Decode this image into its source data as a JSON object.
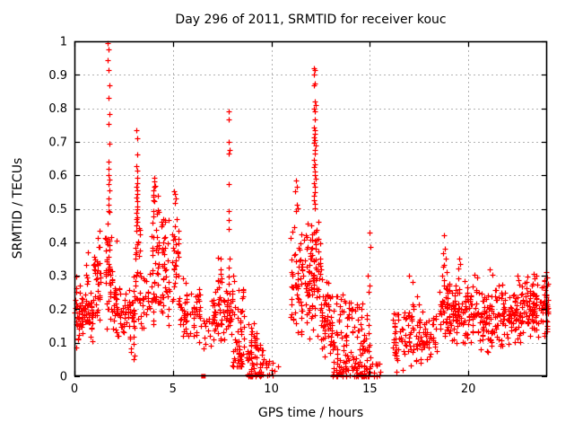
{
  "page": {
    "background": "#ffffff"
  },
  "chart_data": {
    "type": "scatter",
    "title": "Day 296 of 2011, SRMTID for receiver kouc",
    "xlabel": "GPS time / hours",
    "ylabel": "SRMTID / TECUs",
    "xlim": [
      0,
      24
    ],
    "ylim": [
      0,
      1
    ],
    "xticks": [
      0,
      5,
      10,
      15,
      20
    ],
    "yticks": [
      0,
      0.1,
      0.2,
      0.3,
      0.4,
      0.5,
      0.6,
      0.7,
      0.8,
      0.9,
      1
    ],
    "grid": true,
    "legend": "none",
    "marker": {
      "glyph": "plus",
      "color": "#ff0000",
      "size": 7
    },
    "grid_color": "#b3b3b3",
    "axis_color": "#000000",
    "seed": 20111296,
    "notable_points": [
      [
        1.68,
        0.995
      ],
      [
        1.73,
        0.975
      ],
      [
        1.7,
        0.945
      ],
      [
        1.75,
        0.915
      ],
      [
        1.78,
        0.868
      ],
      [
        1.72,
        0.832
      ],
      [
        1.76,
        0.782
      ],
      [
        1.73,
        0.754
      ],
      [
        1.77,
        0.695
      ],
      [
        1.71,
        0.64
      ],
      [
        1.74,
        0.618
      ],
      [
        1.72,
        0.6
      ],
      [
        1.76,
        0.588
      ],
      [
        1.74,
        0.574
      ],
      [
        1.78,
        0.556
      ],
      [
        1.71,
        0.532
      ],
      [
        1.75,
        0.512
      ],
      [
        1.73,
        0.492
      ],
      [
        2.15,
        0.405
      ],
      [
        3.15,
        0.735
      ],
      [
        3.18,
        0.71
      ],
      [
        3.21,
        0.662
      ],
      [
        3.16,
        0.628
      ],
      [
        3.19,
        0.614
      ],
      [
        3.17,
        0.592
      ],
      [
        3.2,
        0.576
      ],
      [
        3.15,
        0.566
      ],
      [
        3.18,
        0.556
      ],
      [
        3.21,
        0.544
      ],
      [
        3.16,
        0.534
      ],
      [
        3.19,
        0.522
      ],
      [
        3.17,
        0.508
      ],
      [
        3.2,
        0.498
      ],
      [
        3.15,
        0.488
      ],
      [
        3.18,
        0.474
      ],
      [
        3.21,
        0.462
      ],
      [
        5.05,
        0.552
      ],
      [
        5.1,
        0.545
      ],
      [
        5.15,
        0.53
      ],
      [
        5.08,
        0.518
      ],
      [
        5.2,
        0.47
      ],
      [
        7.82,
        0.79
      ],
      [
        7.85,
        0.766
      ],
      [
        7.83,
        0.7
      ],
      [
        7.86,
        0.676
      ],
      [
        7.84,
        0.664
      ],
      [
        7.83,
        0.574
      ],
      [
        7.85,
        0.492
      ],
      [
        7.82,
        0.466
      ],
      [
        7.84,
        0.44
      ],
      [
        7.86,
        0.35
      ],
      [
        7.83,
        0.324
      ],
      [
        7.85,
        0.298
      ],
      [
        8.08,
        0.3
      ],
      [
        8.12,
        0.285
      ],
      [
        11.25,
        0.585
      ],
      [
        11.3,
        0.565
      ],
      [
        11.22,
        0.552
      ],
      [
        11.28,
        0.512
      ],
      [
        11.33,
        0.502
      ],
      [
        11.26,
        0.494
      ],
      [
        12.15,
        0.92
      ],
      [
        12.2,
        0.913
      ],
      [
        12.18,
        0.9
      ],
      [
        12.22,
        0.874
      ],
      [
        12.17,
        0.868
      ],
      [
        12.2,
        0.82
      ],
      [
        12.23,
        0.81
      ],
      [
        12.18,
        0.8
      ],
      [
        12.21,
        0.79
      ],
      [
        12.19,
        0.766
      ],
      [
        12.16,
        0.742
      ],
      [
        12.2,
        0.734
      ],
      [
        12.22,
        0.724
      ],
      [
        12.18,
        0.714
      ],
      [
        12.21,
        0.704
      ],
      [
        12.17,
        0.698
      ],
      [
        12.23,
        0.688
      ],
      [
        12.19,
        0.676
      ],
      [
        12.22,
        0.664
      ],
      [
        12.16,
        0.646
      ],
      [
        12.2,
        0.634
      ],
      [
        12.18,
        0.624
      ],
      [
        12.21,
        0.61
      ],
      [
        12.19,
        0.6
      ],
      [
        12.23,
        0.59
      ],
      [
        12.17,
        0.576
      ],
      [
        12.2,
        0.565
      ],
      [
        12.22,
        0.55
      ],
      [
        12.18,
        0.54
      ],
      [
        12.15,
        0.526
      ],
      [
        12.21,
        0.514
      ],
      [
        12.19,
        0.502
      ],
      [
        15.0,
        0.43
      ],
      [
        15.02,
        0.386
      ],
      [
        14.98,
        0.272
      ],
      [
        14.9,
        0.3
      ],
      [
        14.93,
        0.252
      ],
      [
        16.3,
        0.07
      ],
      [
        17.0,
        0.3
      ],
      [
        17.15,
        0.282
      ],
      [
        18.75,
        0.42
      ],
      [
        18.8,
        0.382
      ],
      [
        18.7,
        0.366
      ],
      [
        18.85,
        0.35
      ],
      [
        18.78,
        0.332
      ],
      [
        18.72,
        0.326
      ],
      [
        18.9,
        0.312
      ],
      [
        19.55,
        0.352
      ],
      [
        19.6,
        0.336
      ],
      [
        19.5,
        0.322
      ],
      [
        20.3,
        0.302
      ],
      [
        20.45,
        0.295
      ],
      [
        21.1,
        0.32
      ],
      [
        21.2,
        0.302
      ],
      [
        22.5,
        0.3
      ],
      [
        22.55,
        0.286
      ],
      [
        23.3,
        0.306
      ],
      [
        23.45,
        0.3
      ],
      [
        23.35,
        0.292
      ],
      [
        23.95,
        0.31
      ],
      [
        24.0,
        0.295
      ],
      [
        24.0,
        0.27
      ],
      [
        23.97,
        0.24
      ],
      [
        24.0,
        0.215
      ],
      [
        23.95,
        0.2
      ]
    ],
    "dense_clusters": [
      {
        "x": [
          0.0,
          0.3
        ],
        "y": [
          0.08,
          0.3
        ],
        "n": 28,
        "cols": 2
      },
      {
        "x": [
          0.3,
          0.95
        ],
        "y": [
          0.1,
          0.26
        ],
        "n": 60,
        "cols": 4,
        "bias": "mid"
      },
      {
        "x": [
          0.55,
          0.72
        ],
        "y": [
          0.27,
          0.37
        ],
        "n": 6,
        "cols": 1
      },
      {
        "x": [
          0.95,
          1.35
        ],
        "y": [
          0.12,
          0.46
        ],
        "n": 42,
        "cols": 3,
        "bias": "mid"
      },
      {
        "x": [
          1.55,
          1.95
        ],
        "y": [
          0.12,
          0.5
        ],
        "n": 48,
        "cols": 3,
        "bias": "mid"
      },
      {
        "x": [
          1.95,
          3.05
        ],
        "y": [
          0.11,
          0.28
        ],
        "n": 75,
        "cols": 6,
        "bias": "mid"
      },
      {
        "x": [
          2.75,
          3.05
        ],
        "y": [
          0.05,
          0.12
        ],
        "n": 8,
        "cols": 2
      },
      {
        "x": [
          3.08,
          3.35
        ],
        "y": [
          0.3,
          0.47
        ],
        "n": 20,
        "cols": 2
      },
      {
        "x": [
          3.0,
          3.6
        ],
        "y": [
          0.14,
          0.3
        ],
        "n": 28,
        "cols": 4
      },
      {
        "x": [
          3.6,
          4.5
        ],
        "y": [
          0.15,
          0.32
        ],
        "n": 32,
        "cols": 5,
        "bias": "mid"
      },
      {
        "x": [
          3.92,
          4.32
        ],
        "y": [
          0.3,
          0.5
        ],
        "n": 26,
        "cols": 3
      },
      {
        "x": [
          3.98,
          4.28
        ],
        "y": [
          0.5,
          0.6
        ],
        "n": 10,
        "cols": 2
      },
      {
        "x": [
          4.4,
          4.82
        ],
        "y": [
          0.28,
          0.48
        ],
        "n": 28,
        "cols": 3
      },
      {
        "x": [
          4.4,
          4.85
        ],
        "y": [
          0.15,
          0.28
        ],
        "n": 14,
        "cols": 3
      },
      {
        "x": [
          4.95,
          5.3
        ],
        "y": [
          0.2,
          0.47
        ],
        "n": 30,
        "cols": 3,
        "bias": "mid"
      },
      {
        "x": [
          5.3,
          5.75
        ],
        "y": [
          0.1,
          0.33
        ],
        "n": 30,
        "cols": 3,
        "bias": "mid"
      },
      {
        "x": [
          5.75,
          6.45
        ],
        "y": [
          0.08,
          0.28
        ],
        "n": 34,
        "cols": 4,
        "bias": "mid"
      },
      {
        "x": [
          6.5,
          6.95
        ],
        "y": [
          0.04,
          0.18
        ],
        "n": 12,
        "cols": 3
      },
      {
        "x": [
          6.95,
          7.65
        ],
        "y": [
          0.08,
          0.3
        ],
        "n": 48,
        "cols": 4,
        "bias": "mid"
      },
      {
        "x": [
          7.2,
          7.55
        ],
        "y": [
          0.28,
          0.36
        ],
        "n": 8,
        "cols": 2
      },
      {
        "x": [
          7.68,
          8.05
        ],
        "y": [
          0.1,
          0.3
        ],
        "n": 30,
        "cols": 3,
        "bias": "mid"
      },
      {
        "x": [
          8.0,
          8.65
        ],
        "y": [
          0.03,
          0.28
        ],
        "n": 58,
        "cols": 5,
        "bias": "low"
      },
      {
        "x": [
          8.75,
          9.65
        ],
        "y": [
          0.0,
          0.17
        ],
        "n": 75,
        "cols": 6,
        "bias": "low"
      },
      {
        "x": [
          9.65,
          10.4
        ],
        "y": [
          0.0,
          0.05
        ],
        "n": 12,
        "cols": 4,
        "bias": "low"
      },
      {
        "x": [
          10.95,
          11.6
        ],
        "y": [
          0.08,
          0.45
        ],
        "n": 55,
        "cols": 4,
        "bias": "mid"
      },
      {
        "x": [
          11.6,
          12.5
        ],
        "y": [
          0.08,
          0.5
        ],
        "n": 95,
        "cols": 6,
        "bias": "mid"
      },
      {
        "x": [
          12.5,
          13.1
        ],
        "y": [
          0.05,
          0.33
        ],
        "n": 60,
        "cols": 4,
        "bias": "mid"
      },
      {
        "x": [
          13.1,
          14.0
        ],
        "y": [
          0.0,
          0.25
        ],
        "n": 85,
        "cols": 6,
        "bias": "low"
      },
      {
        "x": [
          14.0,
          15.05
        ],
        "y": [
          0.0,
          0.22
        ],
        "n": 95,
        "cols": 7,
        "bias": "low"
      },
      {
        "x": [
          15.1,
          15.55
        ],
        "y": [
          0.0,
          0.04
        ],
        "n": 10,
        "cols": 3,
        "bias": "low"
      },
      {
        "x": [
          16.15,
          16.7
        ],
        "y": [
          0.0,
          0.22
        ],
        "n": 35,
        "cols": 3,
        "bias": "mid"
      },
      {
        "x": [
          16.7,
          17.6
        ],
        "y": [
          0.02,
          0.25
        ],
        "n": 55,
        "cols": 5,
        "bias": "mid"
      },
      {
        "x": [
          17.6,
          18.45
        ],
        "y": [
          0.04,
          0.2
        ],
        "n": 42,
        "cols": 5,
        "bias": "mid"
      },
      {
        "x": [
          18.5,
          19.1
        ],
        "y": [
          0.1,
          0.32
        ],
        "n": 50,
        "cols": 4,
        "bias": "mid"
      },
      {
        "x": [
          19.1,
          20.6
        ],
        "y": [
          0.08,
          0.3
        ],
        "n": 110,
        "cols": 9,
        "bias": "mid"
      },
      {
        "x": [
          20.6,
          21.6
        ],
        "y": [
          0.06,
          0.3
        ],
        "n": 78,
        "cols": 6,
        "bias": "mid"
      },
      {
        "x": [
          21.6,
          22.7
        ],
        "y": [
          0.08,
          0.28
        ],
        "n": 80,
        "cols": 7,
        "bias": "mid"
      },
      {
        "x": [
          22.7,
          23.7
        ],
        "y": [
          0.1,
          0.3
        ],
        "n": 80,
        "cols": 6,
        "bias": "mid"
      },
      {
        "x": [
          23.7,
          24.05
        ],
        "y": [
          0.1,
          0.31
        ],
        "n": 40,
        "cols": 3,
        "bias": "mid"
      }
    ],
    "solid_markers": [
      [
        6.55,
        0
      ],
      [
        8.97,
        0
      ]
    ]
  }
}
